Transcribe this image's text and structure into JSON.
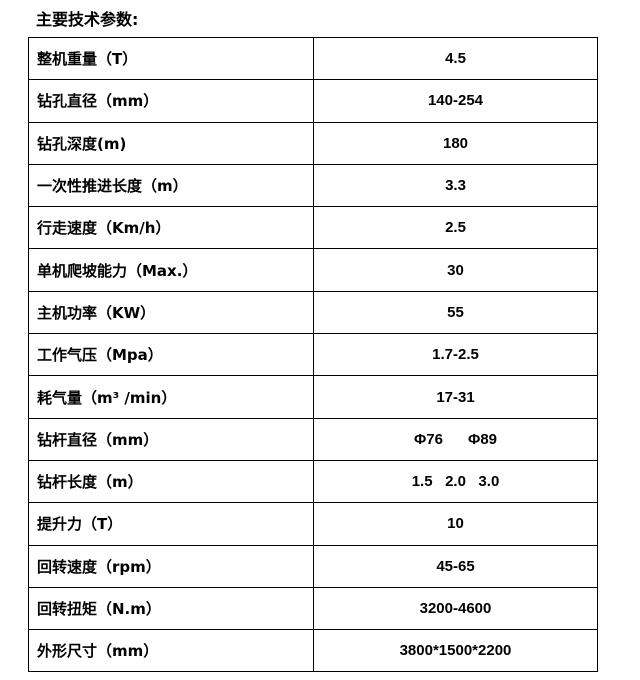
{
  "title": "主要技术参数:",
  "rows": [
    {
      "label": "整机重量（T）",
      "value": "4.5"
    },
    {
      "label": "钻孔直径（mm）",
      "value": "140-254"
    },
    {
      "label": "钻孔深度(m)",
      "value": "180"
    },
    {
      "label": "一次性推进长度（m）",
      "value": "3.3"
    },
    {
      "label": "行走速度（Km/h）",
      "value": "2.5"
    },
    {
      "label": "单机爬坡能力（Max.）",
      "value": "30"
    },
    {
      "label": "主机功率（KW）",
      "value": "55"
    },
    {
      "label": "工作气压（Mpa）",
      "value": "1.7-2.5"
    },
    {
      "label": "耗气量（m³ /min）",
      "value": "17-31"
    },
    {
      "label": "钻杆直径（mm）",
      "value": "Φ76      Φ89"
    },
    {
      "label": "钻杆长度（m）",
      "value": "1.5   2.0   3.0"
    },
    {
      "label": "提升力（T）",
      "value": "10"
    },
    {
      "label": "回转速度（rpm）",
      "value": "45-65"
    },
    {
      "label": "回转扭矩（N.m）",
      "value": "3200-4600"
    },
    {
      "label": "外形尺寸（mm）",
      "value": "3800*1500*2200"
    }
  ]
}
